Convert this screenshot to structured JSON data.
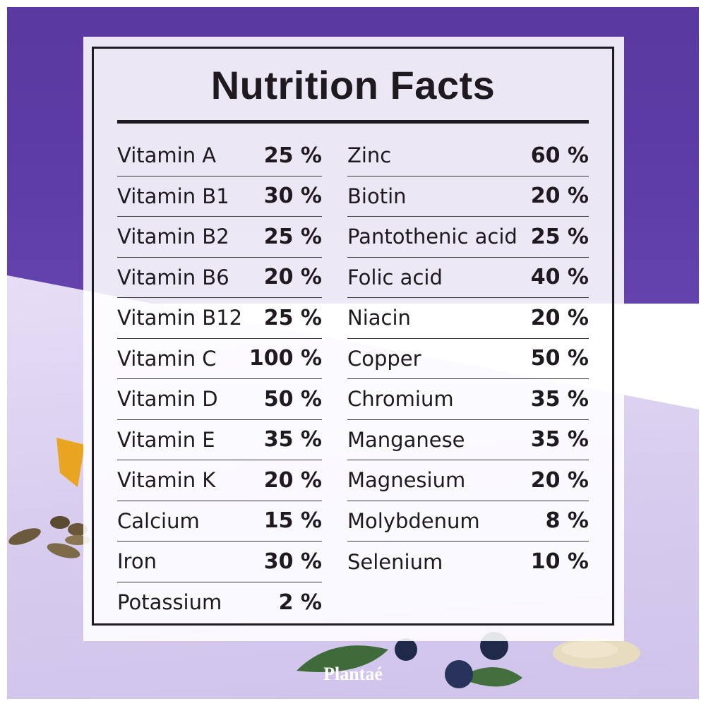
{
  "title": "Nutrition Facts",
  "brand": "Plantaé",
  "colors": {
    "wall": "#5d3da6",
    "table": "#ddd3f1",
    "ink": "#1e1a1f",
    "panel": "#ffffff"
  },
  "left_column": [
    {
      "name": "Vitamin A",
      "value": "25 %"
    },
    {
      "name": "Vitamin B1",
      "value": "30 %"
    },
    {
      "name": "Vitamin B2",
      "value": "25 %"
    },
    {
      "name": "Vitamin B6",
      "value": "20 %"
    },
    {
      "name": "Vitamin B12",
      "value": "25 %"
    },
    {
      "name": "Vitamin C",
      "value": "100 %"
    },
    {
      "name": "Vitamin D",
      "value": "50 %"
    },
    {
      "name": "Vitamin E",
      "value": "35 %"
    },
    {
      "name": "Vitamin K",
      "value": "20 %"
    },
    {
      "name": "Calcium",
      "value": "15 %"
    },
    {
      "name": "Iron",
      "value": "30 %"
    },
    {
      "name": "Potassium",
      "value": "2 %"
    }
  ],
  "right_column": [
    {
      "name": "Zinc",
      "value": "60 %"
    },
    {
      "name": "Biotin",
      "value": "20 %"
    },
    {
      "name": "Pantothenic acid",
      "value": "25 %"
    },
    {
      "name": "Folic acid",
      "value": "40 %"
    },
    {
      "name": "Niacin",
      "value": "20 %"
    },
    {
      "name": "Copper",
      "value": "50 %"
    },
    {
      "name": "Chromium",
      "value": "35 %"
    },
    {
      "name": "Manganese",
      "value": "35 %"
    },
    {
      "name": "Magnesium",
      "value": "20 %"
    },
    {
      "name": "Molybdenum",
      "value": "8 %"
    },
    {
      "name": "Selenium",
      "value": "10 %"
    }
  ]
}
